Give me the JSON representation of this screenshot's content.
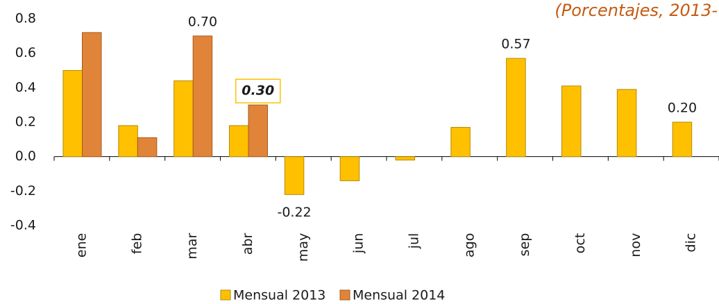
{
  "chart_data": {
    "type": "bar",
    "title": "(Porcentajes, 2013-",
    "categories": [
      "ene",
      "feb",
      "mar",
      "abr",
      "may",
      "jun",
      "jul",
      "ago",
      "sep",
      "oct",
      "nov",
      "dic"
    ],
    "series": [
      {
        "name": "Mensual 2013",
        "color": "#FFC000",
        "values": [
          0.5,
          0.18,
          0.44,
          0.18,
          -0.22,
          -0.14,
          -0.02,
          0.17,
          0.57,
          0.41,
          0.39,
          0.2
        ],
        "value_labels": [
          null,
          null,
          null,
          null,
          "-0.22",
          null,
          null,
          null,
          "0.57",
          null,
          null,
          "0.20"
        ]
      },
      {
        "name": "Mensual 2014",
        "color": "#E0843A",
        "values": [
          0.72,
          0.11,
          0.7,
          0.3,
          null,
          null,
          null,
          null,
          null,
          null,
          null,
          null
        ],
        "value_labels": [
          null,
          null,
          "0.70",
          "0.30",
          null,
          null,
          null,
          null,
          null,
          null,
          null,
          null
        ]
      }
    ],
    "ylim": [
      -0.4,
      0.8
    ],
    "yticks": [
      -0.4,
      -0.2,
      {
        "value": 0,
        "label": "0.0"
      },
      0.2,
      0.4,
      0.6,
      0.8
    ],
    "grid": false
  }
}
